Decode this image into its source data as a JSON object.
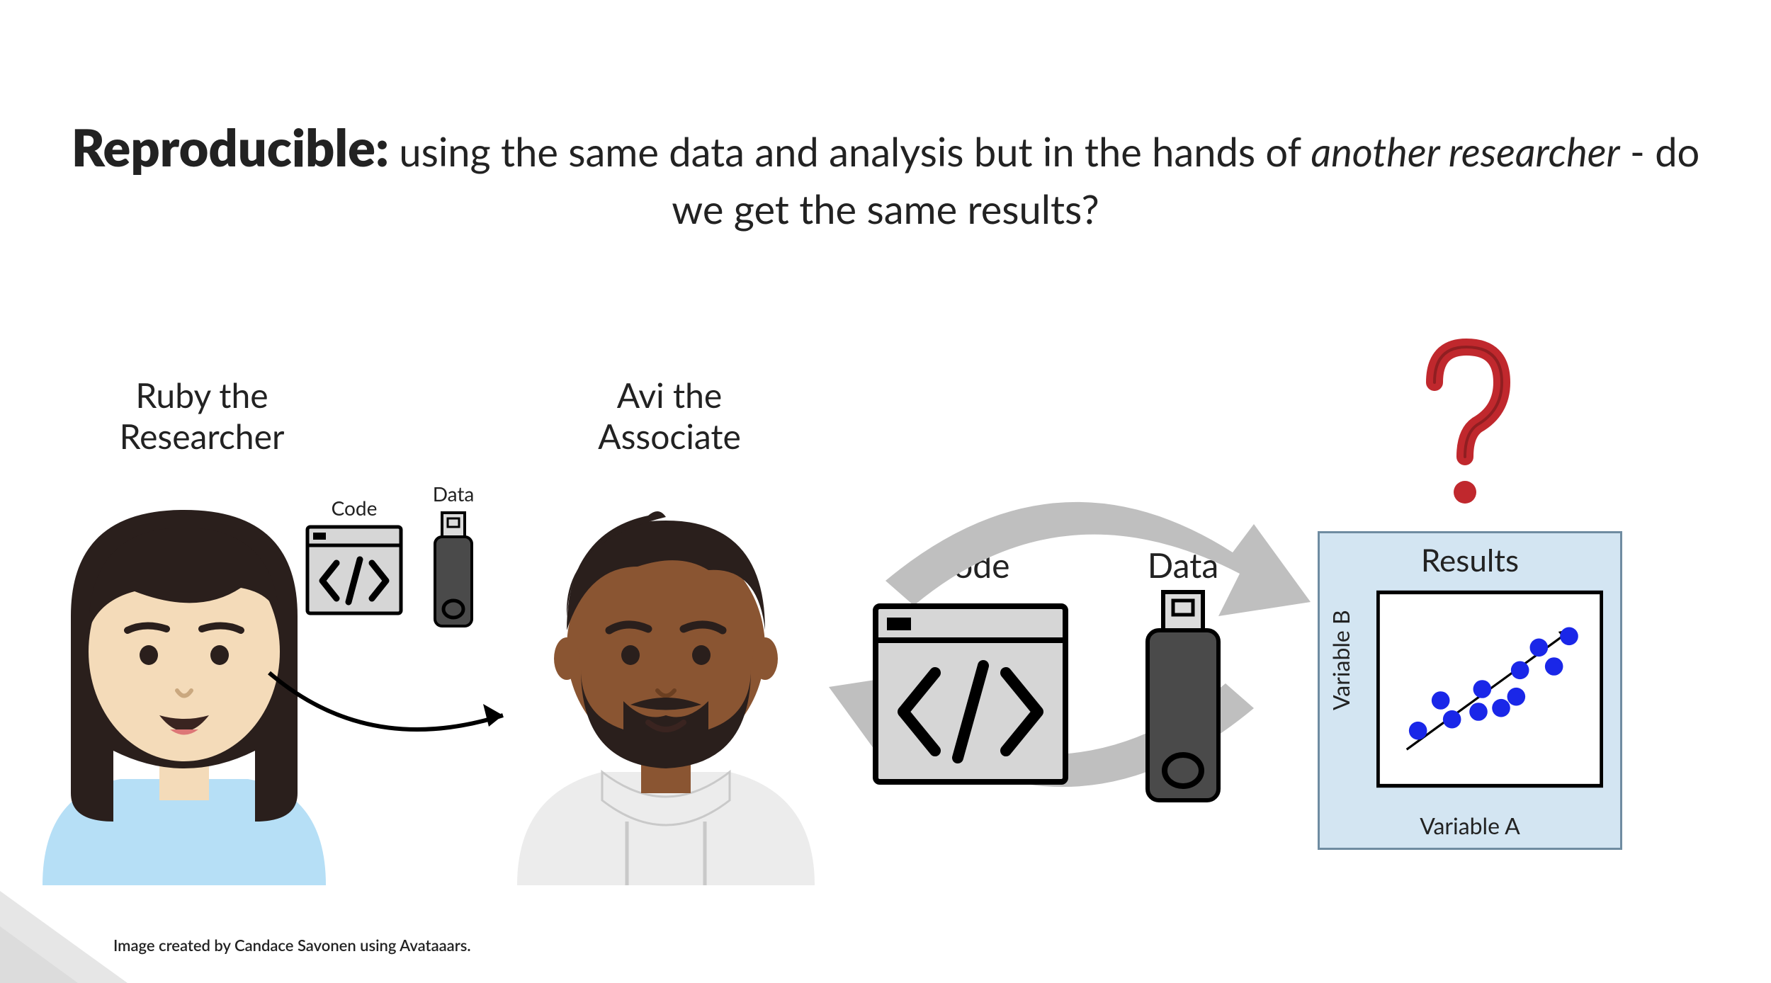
{
  "heading": {
    "bold": "Reproducible:",
    "pre_italic": " using the same data and analysis but in the hands of ",
    "italic": "another researcher",
    "post_italic": " - do we get the same results?"
  },
  "people": {
    "ruby": {
      "line1": "Ruby the",
      "line2": "Researcher"
    },
    "avi": {
      "line1": "Avi the",
      "line2": "Associate"
    }
  },
  "labels": {
    "code_sm": "Code",
    "data_sm": "Data",
    "code_lg": "Code",
    "data_lg": "Data",
    "results": "Results",
    "var_a": "Variable A",
    "var_b": "Variable B"
  },
  "credit": "Image created by Candace Savonen using Avataaars.",
  "colors": {
    "bg": "#ffffff",
    "text": "#222222",
    "arrow_gray": "#bfbfbf",
    "arrow_black": "#000000",
    "code_fill": "#d6d6d6",
    "code_stroke": "#000000",
    "usb_body": "#4a4a4a",
    "usb_tip_fill": "#dcdcdc",
    "results_bg": "#d3e5f2",
    "results_border": "#6f8ca1",
    "scatter_point": "#1a27e8",
    "question_red": "#c0282d",
    "ruby_hair": "#2a1f1c",
    "ruby_skin": "#f4dbb9",
    "ruby_shirt": "#b6dff6",
    "avi_hair": "#2a1f1c",
    "avi_skin": "#8a5532",
    "avi_shirt": "#ececec",
    "corner_triangle": "#e6e6e6"
  },
  "scatter": {
    "points": [
      [
        55,
        185
      ],
      [
        85,
        145
      ],
      [
        100,
        170
      ],
      [
        135,
        160
      ],
      [
        140,
        130
      ],
      [
        165,
        155
      ],
      [
        185,
        140
      ],
      [
        190,
        105
      ],
      [
        215,
        75
      ],
      [
        235,
        100
      ],
      [
        255,
        60
      ]
    ],
    "point_radius": 12,
    "arrow_start": [
      40,
      210
    ],
    "arrow_end": [
      260,
      50
    ]
  }
}
